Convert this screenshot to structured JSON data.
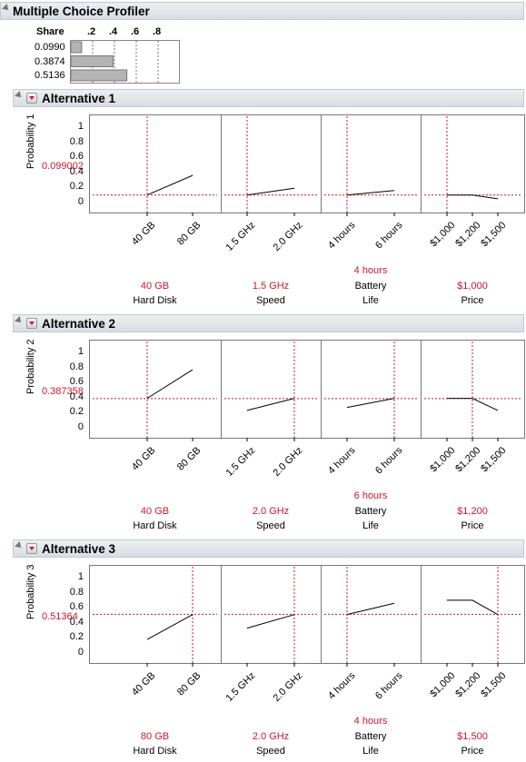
{
  "profiler_title": "Multiple Choice Profiler",
  "share": {
    "label": "Share",
    "ticks": [
      ".2",
      ".4",
      ".6",
      ".8"
    ],
    "tick_values": [
      0.2,
      0.4,
      0.6,
      0.8
    ],
    "values": [
      "0.0990",
      "0.3874",
      "0.5136"
    ],
    "numeric": [
      0.099,
      0.3874,
      0.5136
    ]
  },
  "colors": {
    "red": "#d0152b",
    "bar": "#b4b4b4",
    "line": "#000000",
    "frame": "#777777"
  },
  "y_ticks": [
    "1",
    "0.8",
    "0.6",
    "0.4",
    "0.2",
    "0"
  ],
  "factors": [
    {
      "name": "Hard Disk",
      "levels": [
        "40 GB",
        "80 GB"
      ]
    },
    {
      "name": "Speed",
      "levels": [
        "1.5 GHz",
        "2.0 GHz"
      ]
    },
    {
      "name": "Battery Life",
      "name_line1": "Battery",
      "name_line2": "Life",
      "levels": [
        "4 hours",
        "6 hours"
      ]
    },
    {
      "name": "Price",
      "levels": [
        "$1,000",
        "$1,200",
        "$1,500"
      ]
    }
  ],
  "alternatives": [
    {
      "title": "Alternative 1",
      "ylabel": "Probability 1",
      "prob": "0.099002",
      "prob_value": 0.099002,
      "current": [
        "40 GB",
        "1.5 GHz",
        "4 hours",
        "$1,000"
      ],
      "current_index": [
        0,
        0,
        0,
        0
      ],
      "curves": [
        [
          0.1,
          0.36
        ],
        [
          0.1,
          0.19
        ],
        [
          0.1,
          0.16
        ],
        [
          0.1,
          0.1,
          0.05
        ]
      ]
    },
    {
      "title": "Alternative 2",
      "ylabel": "Probability 2",
      "prob": "0.387358",
      "prob_value": 0.387358,
      "current": [
        "40 GB",
        "2.0 GHz",
        "6 hours",
        "$1,200"
      ],
      "current_index": [
        0,
        1,
        1,
        1
      ],
      "curves": [
        [
          0.39,
          0.77
        ],
        [
          0.23,
          0.39
        ],
        [
          0.27,
          0.39
        ],
        [
          0.39,
          0.39,
          0.23
        ]
      ]
    },
    {
      "title": "Alternative 3",
      "ylabel": "Probability 3",
      "prob": "0.51364",
      "prob_value": 0.51364,
      "current": [
        "80 GB",
        "2.0 GHz",
        "4 hours",
        "$1,500"
      ],
      "current_index": [
        1,
        1,
        0,
        2
      ],
      "curves": [
        [
          0.18,
          0.51
        ],
        [
          0.33,
          0.51
        ],
        [
          0.51,
          0.66
        ],
        [
          0.7,
          0.7,
          0.51
        ]
      ]
    }
  ]
}
